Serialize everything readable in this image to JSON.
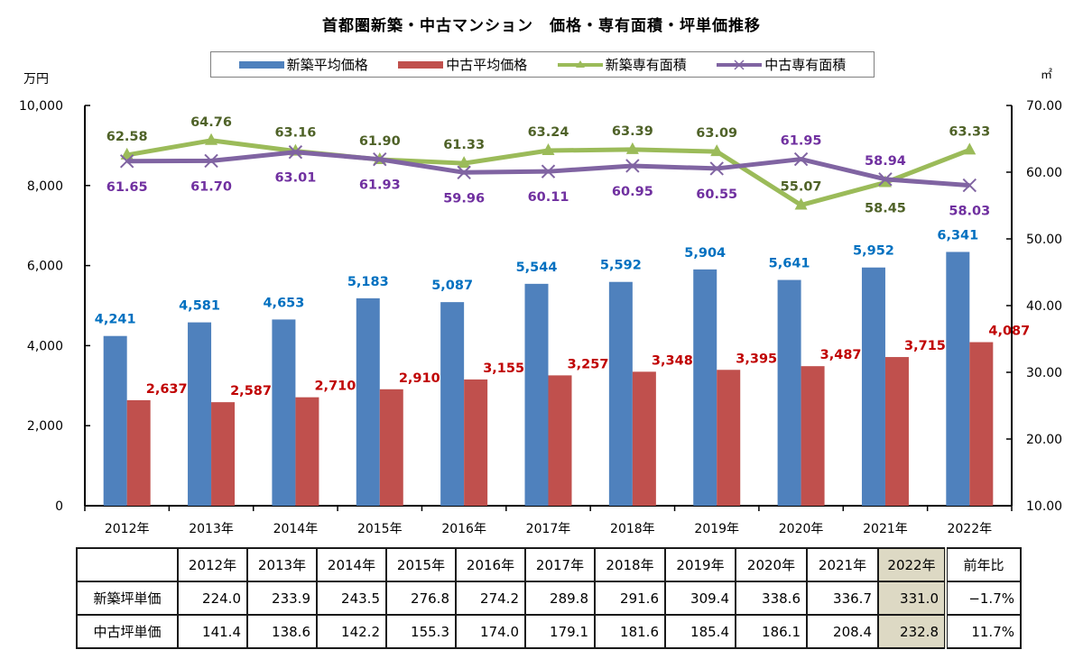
{
  "chart_data": {
    "type": "bar",
    "title": "首都圏新築・中古マンション　価格・専有面積・坪単価推移",
    "categories": [
      "2012年",
      "2013年",
      "2014年",
      "2015年",
      "2016年",
      "2017年",
      "2018年",
      "2019年",
      "2020年",
      "2021年",
      "2022年"
    ],
    "left_axis": {
      "unit": "万円",
      "min": 0,
      "max": 10000,
      "ticks": [
        "0",
        "2,000",
        "4,000",
        "6,000",
        "8,000",
        "10,000"
      ],
      "tick_values": [
        0,
        2000,
        4000,
        6000,
        8000,
        10000
      ]
    },
    "right_axis": {
      "unit": "㎡",
      "min": 10,
      "max": 70,
      "ticks": [
        "10.00",
        "20.00",
        "30.00",
        "40.00",
        "50.00",
        "60.00",
        "70.00"
      ],
      "tick_values": [
        10,
        20,
        30,
        40,
        50,
        60,
        70
      ]
    },
    "legend_position": "top",
    "grid": false,
    "series": [
      {
        "name": "新築平均価格",
        "type": "bar",
        "axis": "left",
        "color": "#4f81bd",
        "label_color": "#0070c0",
        "values": [
          4241,
          4581,
          4653,
          5183,
          5087,
          5544,
          5592,
          5904,
          5641,
          5952,
          6341
        ],
        "labels": [
          "4,241",
          "4,581",
          "4,653",
          "5,183",
          "5,087",
          "5,544",
          "5,592",
          "5,904",
          "5,641",
          "5,952",
          "6,341"
        ]
      },
      {
        "name": "中古平均価格",
        "type": "bar",
        "axis": "left",
        "color": "#c0504d",
        "label_color": "#c00000",
        "values": [
          2637,
          2587,
          2710,
          2910,
          3155,
          3257,
          3348,
          3395,
          3487,
          3715,
          4087
        ],
        "labels": [
          "2,637",
          "2,587",
          "2,710",
          "2,910",
          "3,155",
          "3,257",
          "3,348",
          "3,395",
          "3,487",
          "3,715",
          "4,087"
        ]
      },
      {
        "name": "新築専有面積",
        "type": "line",
        "axis": "right",
        "marker": "triangle",
        "color": "#9bbb59",
        "label_color": "#4f6228",
        "values": [
          62.58,
          64.76,
          63.16,
          61.9,
          61.33,
          63.24,
          63.39,
          63.09,
          55.07,
          58.45,
          63.33
        ],
        "labels": [
          "62.58",
          "64.76",
          "63.16",
          "61.90",
          "61.33",
          "63.24",
          "63.39",
          "63.09",
          "55.07",
          "58.45",
          "63.33"
        ],
        "label_side": [
          "above",
          "above",
          "above",
          "above",
          "above",
          "above",
          "above",
          "above",
          "above",
          "below",
          "above"
        ]
      },
      {
        "name": "中古専有面積",
        "type": "line",
        "axis": "right",
        "marker": "x",
        "color": "#8064a2",
        "label_color": "#7030a0",
        "values": [
          61.65,
          61.7,
          63.01,
          61.93,
          59.96,
          60.11,
          60.95,
          60.55,
          61.95,
          58.94,
          58.03
        ],
        "labels": [
          "61.65",
          "61.70",
          "63.01",
          "61.93",
          "59.96",
          "60.11",
          "60.95",
          "60.55",
          "61.95",
          "58.94",
          "58.03"
        ],
        "label_side": [
          "below",
          "below",
          "below",
          "below",
          "below",
          "below",
          "below",
          "below",
          "above",
          "above",
          "below"
        ]
      }
    ]
  },
  "table": {
    "headers": [
      "",
      "2012年",
      "2013年",
      "2014年",
      "2015年",
      "2016年",
      "2017年",
      "2018年",
      "2019年",
      "2020年",
      "2021年",
      "2022年",
      "前年比"
    ],
    "rows": [
      {
        "label": "新築坪単価",
        "values": [
          "224.0",
          "233.9",
          "243.5",
          "276.8",
          "274.2",
          "289.8",
          "291.6",
          "309.4",
          "338.6",
          "336.7",
          "331.0"
        ],
        "yoy": "−1.7%"
      },
      {
        "label": "中古坪単価",
        "values": [
          "141.4",
          "138.6",
          "142.2",
          "155.3",
          "174.0",
          "179.1",
          "181.6",
          "185.4",
          "186.1",
          "208.4",
          "232.8"
        ],
        "yoy": "11.7%"
      }
    ],
    "highlight_color": "#ddd9c4"
  }
}
